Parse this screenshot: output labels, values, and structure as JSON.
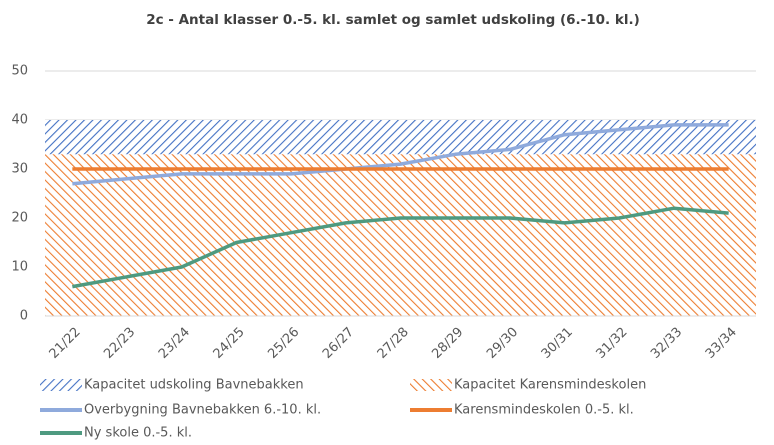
{
  "chart_data": {
    "type": "line",
    "title": "2c - Antal klasser 0.-5. kl. samlet og samlet udskoling (6.-10. kl.)",
    "categories": [
      "21/22",
      "22/23",
      "23/24",
      "24/25",
      "25/26",
      "26/27",
      "27/28",
      "28/29",
      "29/30",
      "30/31",
      "31/32",
      "32/33",
      "33/34"
    ],
    "ylim": [
      0,
      50
    ],
    "yticks": [
      0,
      10,
      20,
      30,
      40,
      50
    ],
    "grid": true,
    "series": [
      {
        "name": "Kapacitet udskoling Bavnebakken",
        "kind": "area",
        "pattern": "forward-hatch",
        "color": "#4472c4",
        "values": [
          40,
          40,
          40,
          40,
          40,
          40,
          40,
          40,
          40,
          40,
          40,
          40,
          40
        ]
      },
      {
        "name": "Kapacitet Karensmindeskolen",
        "kind": "area",
        "pattern": "backward-hatch",
        "color": "#ed7d31",
        "values": [
          33,
          33,
          33,
          33,
          33,
          33,
          33,
          33,
          33,
          33,
          33,
          33,
          33
        ]
      },
      {
        "name": "Overbygning Bavnebakken 6.-10. kl.",
        "kind": "line",
        "color": "#8faadc",
        "values": [
          27,
          28,
          29,
          29,
          29,
          30,
          31,
          33,
          34,
          37,
          38,
          39,
          39
        ]
      },
      {
        "name": "Karensmindeskolen 0.-5. kl.",
        "kind": "line",
        "color": "#ed7d31",
        "values": [
          30,
          30,
          30,
          30,
          30,
          30,
          30,
          30,
          30,
          30,
          30,
          30,
          30
        ]
      },
      {
        "name": "Ny skole 0.-5. kl.",
        "kind": "line",
        "color": "#4e9a80",
        "values": [
          6,
          8,
          10,
          15,
          17,
          19,
          20,
          20,
          20,
          19,
          20,
          22,
          21
        ]
      }
    ]
  }
}
